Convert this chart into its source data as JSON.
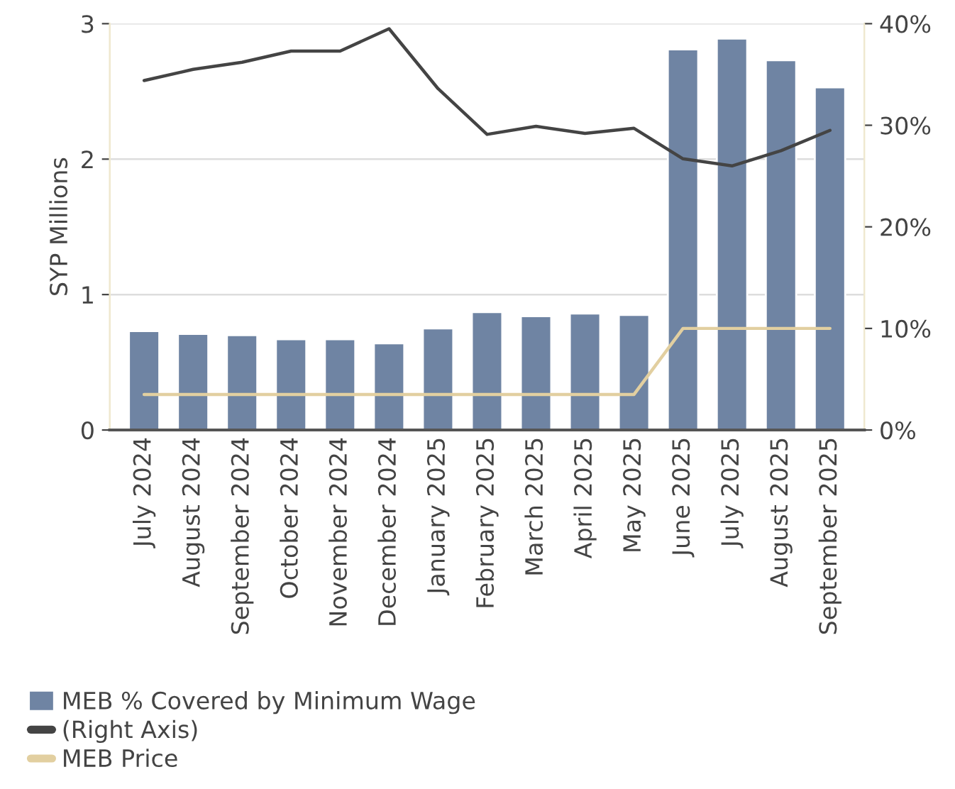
{
  "chart_data": {
    "type": "bar",
    "ylabel": "SYP Millions",
    "categories": [
      "July 2024",
      "August 2024",
      "September 2024",
      "October 2024",
      "November 2024",
      "December 2024",
      "January 2025",
      "February 2025",
      "March 2025",
      "April 2025",
      "May 2025",
      "June 2025",
      "July 2025",
      "August 2025",
      "September 2025"
    ],
    "series": [
      {
        "name": "MEB % Covered by Minimum Wage",
        "color": "#6f84a3",
        "values": [
          0.73,
          0.71,
          0.7,
          0.67,
          0.67,
          0.64,
          0.75,
          0.87,
          0.84,
          0.86,
          0.85,
          2.81,
          2.89,
          2.73,
          2.53
        ]
      },
      {
        "name": "(Right Axis)",
        "type": "line",
        "axis": "y2",
        "color": "#444444",
        "values": [
          34.4,
          35.5,
          36.2,
          37.3,
          37.3,
          39.5,
          33.6,
          29.1,
          29.9,
          29.2,
          29.7,
          26.7,
          26.0,
          27.5,
          29.5
        ]
      },
      {
        "name": "MEB Price",
        "type": "line",
        "axis": "y2",
        "color": "#e2cfa0",
        "values": [
          3.5,
          3.5,
          3.5,
          3.5,
          3.5,
          3.5,
          3.5,
          3.5,
          3.5,
          3.5,
          3.5,
          10,
          10,
          10,
          10
        ]
      }
    ],
    "ylim": [
      0,
      3
    ],
    "yticks": [
      0,
      1,
      2,
      3
    ],
    "y2lim": [
      0,
      40
    ],
    "y2ticks": [
      {
        "value": 0,
        "label": "0%"
      },
      {
        "value": 10,
        "label": "10%"
      },
      {
        "value": 20,
        "label": "20%"
      },
      {
        "value": 30,
        "label": "30%"
      },
      {
        "value": 40,
        "label": "40%"
      }
    ],
    "grid": "y",
    "legend": "bottom left"
  }
}
